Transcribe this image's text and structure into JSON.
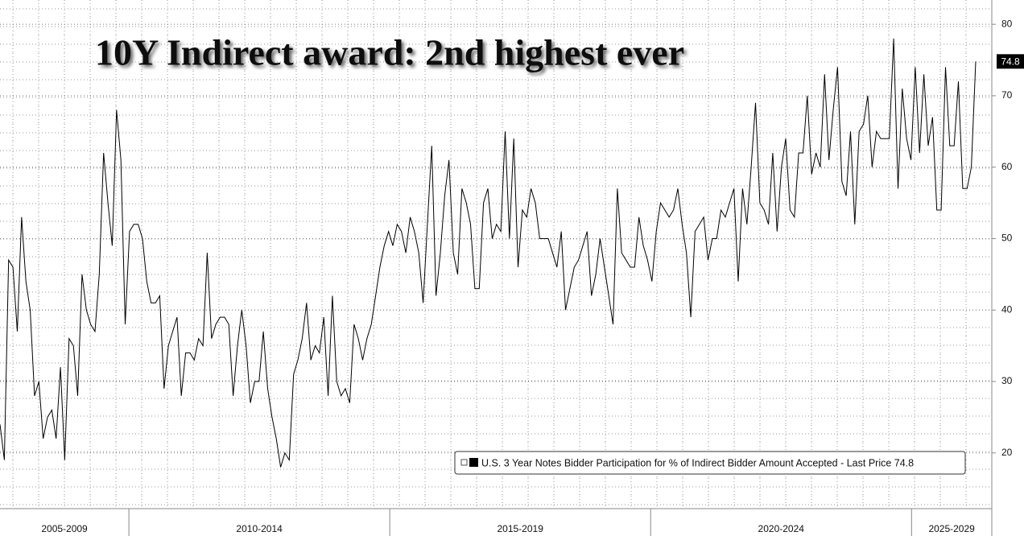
{
  "chart_data": {
    "type": "line",
    "title": "10Y Indirect award: 2nd highest ever",
    "xlim": [
      2007.53,
      2026.23
    ],
    "xticks": [
      {
        "value": 2005,
        "label": "2005-2009"
      },
      {
        "value": 2010,
        "label": "2010-2014"
      },
      {
        "value": 2015,
        "label": "2015-2019"
      },
      {
        "value": 2020,
        "label": "2020-2024"
      },
      {
        "value": 2025,
        "label": "2025-2029"
      }
    ],
    "ylim": [
      12.2,
      83.4
    ],
    "yticks": [
      20,
      30,
      40,
      50,
      60,
      70,
      80
    ],
    "grid": true,
    "legend": "bottom-right",
    "series": [
      {
        "name": "U.S. 3 Year Notes Bidder Participation for % of Indirect Bidder Amount Accepted - Last Price 74.8",
        "color": "#000000",
        "values": [
          24,
          19,
          47,
          46,
          37,
          53,
          44,
          40,
          28,
          30,
          22,
          25,
          26,
          22,
          32,
          19,
          36,
          35,
          28,
          45,
          40,
          38,
          37,
          45,
          62,
          55,
          49,
          68,
          61,
          38,
          51,
          52,
          52,
          50,
          44,
          41,
          41,
          42,
          29,
          35,
          37,
          39,
          28,
          34,
          34,
          33,
          36,
          35,
          48,
          36,
          38,
          39,
          39,
          38,
          28,
          35,
          40,
          35,
          27,
          30,
          30,
          37,
          29,
          25,
          22,
          18,
          20,
          19,
          31,
          33,
          36,
          41,
          33,
          35,
          34,
          39,
          28,
          42,
          30,
          28,
          29,
          27,
          38,
          36,
          33,
          36,
          38,
          42,
          46,
          49,
          51,
          49,
          52,
          51,
          48,
          53,
          51,
          48,
          41,
          52,
          63,
          42,
          48,
          56,
          61,
          48,
          45,
          57,
          55,
          52,
          43,
          43,
          55,
          57,
          50,
          52,
          51,
          65,
          50,
          64,
          46,
          54,
          53,
          57,
          55,
          50,
          50,
          50,
          48,
          46,
          51,
          40,
          43,
          46,
          47,
          49,
          51,
          42,
          45,
          50,
          46,
          42,
          38,
          57,
          48,
          47,
          46,
          46,
          53,
          49,
          47,
          44,
          51,
          55,
          54,
          53,
          54,
          57,
          52,
          48,
          39,
          51,
          52,
          53,
          47,
          50,
          50,
          54,
          53,
          55,
          57,
          44,
          57,
          52,
          60,
          69,
          55,
          54,
          52,
          62,
          51,
          60,
          64,
          54,
          53,
          62,
          62,
          70,
          59,
          62,
          60,
          73,
          61,
          68,
          74,
          58,
          56,
          65,
          52,
          65,
          66,
          70,
          60,
          65,
          64,
          64,
          64,
          78,
          57,
          71,
          64,
          61,
          74,
          62,
          73,
          63,
          67,
          54,
          54,
          74,
          63,
          63,
          72,
          57,
          57,
          60,
          74.8
        ]
      }
    ]
  }
}
